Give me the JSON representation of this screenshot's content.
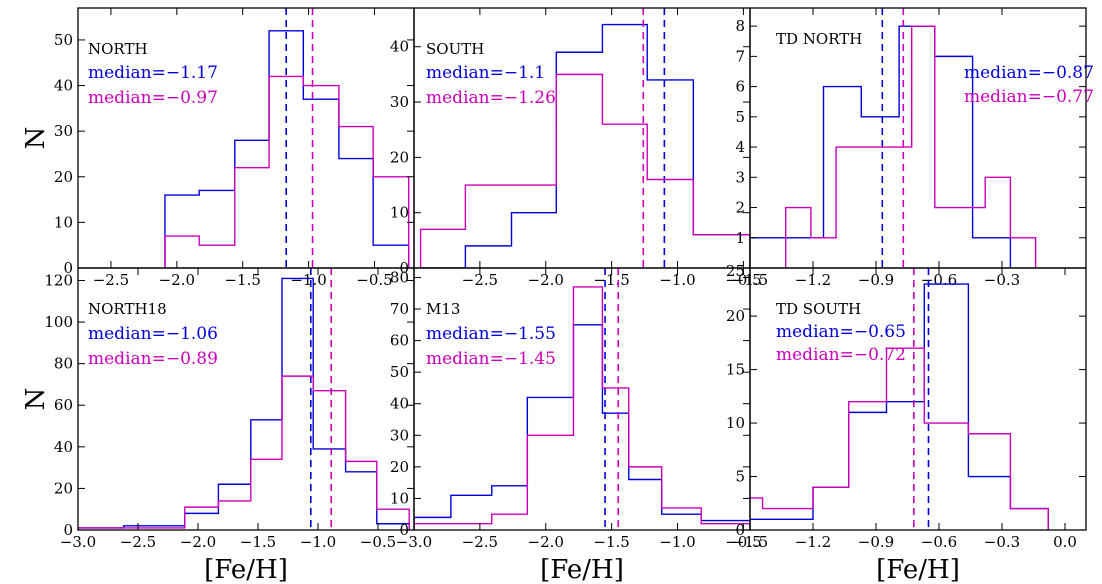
{
  "colors": {
    "blue": "#0000dd",
    "magenta": "#cc00bb",
    "axis": "#000000"
  },
  "chart_data": [
    {
      "type": "histogram",
      "panel": "top-left",
      "annotation": {
        "title": "NORTH",
        "median_blue": "median=−1.17",
        "median_magenta": "median=−0.97"
      },
      "xlim": [
        -2.75,
        -0.2
      ],
      "ylim": [
        0,
        57
      ],
      "xticks": [
        -2.5,
        -2.0,
        -1.5,
        -1.0,
        -0.5
      ],
      "xtick_labels": [
        "−2.5",
        "−2.0",
        "−1.5",
        "−1.0",
        "−0.5"
      ],
      "yticks": [
        0,
        10,
        20,
        30,
        40,
        50
      ],
      "ytick_labels": [
        "0",
        "10",
        "20",
        "30",
        "40",
        "50"
      ],
      "ylabel": "N",
      "xlabel": "",
      "series": [
        {
          "color": "blue",
          "median": -1.17,
          "edges": [
            -2.09,
            -1.83,
            -1.56,
            -1.3,
            -1.04,
            -0.77,
            -0.51,
            -0.24
          ],
          "counts": [
            16,
            17,
            28,
            52,
            37,
            24,
            5
          ]
        },
        {
          "color": "magenta",
          "median": -0.97,
          "edges": [
            -2.09,
            -1.83,
            -1.56,
            -1.3,
            -1.04,
            -0.77,
            -0.51,
            -0.24
          ],
          "counts": [
            7,
            5,
            22,
            42,
            40,
            31,
            20
          ]
        }
      ]
    },
    {
      "type": "histogram",
      "panel": "top-middle",
      "annotation": {
        "title": "SOUTH",
        "median_blue": "median=−1.1",
        "median_magenta": "median=−1.26"
      },
      "xlim": [
        -3.0,
        -0.45
      ],
      "ylim": [
        0,
        47
      ],
      "xticks": [
        -2.5,
        -2.0,
        -1.5,
        -1.0,
        -0.5
      ],
      "xtick_labels": [
        "−2.5",
        "−2.0",
        "−1.5",
        "−1.0",
        "−0.5"
      ],
      "yticks": [
        0,
        10,
        20,
        30,
        40
      ],
      "ytick_labels": [
        "0",
        "10",
        "20",
        "30",
        "40"
      ],
      "ylabel": "",
      "xlabel": "",
      "series": [
        {
          "color": "blue",
          "median": -1.1,
          "edges": [
            -2.95,
            -2.61,
            -2.26,
            -1.92,
            -1.57,
            -1.23,
            -0.88,
            -0.45
          ],
          "counts": [
            0,
            4,
            10,
            39,
            44,
            34,
            6
          ]
        },
        {
          "color": "magenta",
          "median": -1.26,
          "edges": [
            -2.95,
            -2.61,
            -2.26,
            -1.92,
            -1.57,
            -1.23,
            -0.88,
            -0.45
          ],
          "counts": [
            7,
            15,
            15,
            35,
            26,
            16,
            6
          ]
        }
      ]
    },
    {
      "type": "histogram",
      "panel": "top-right",
      "annotation": {
        "title": "TD NORTH",
        "median_blue": "median=−0.87",
        "median_magenta": "median=−0.77"
      },
      "xlim": [
        -1.5,
        0.1
      ],
      "ylim": [
        0,
        8.6
      ],
      "xticks": [
        -1.5,
        -1.2,
        -0.9,
        -0.6,
        -0.3
      ],
      "xtick_labels": [
        "−1.5",
        "−1.2",
        "−0.9",
        "−0.6",
        "−0.3"
      ],
      "yticks": [
        1,
        2,
        3,
        4,
        5,
        6,
        7,
        8
      ],
      "ytick_labels": [
        "1",
        "2",
        "3",
        "4",
        "5",
        "6",
        "7",
        "8"
      ],
      "ylabel": "",
      "xlabel": "",
      "series": [
        {
          "color": "blue",
          "median": -0.87,
          "edges": [
            -1.51,
            -1.33,
            -1.15,
            -0.97,
            -0.79,
            -0.62,
            -0.44,
            -0.26
          ],
          "counts": [
            1,
            1,
            6,
            5,
            8,
            7,
            1
          ]
        },
        {
          "color": "magenta",
          "median": -0.77,
          "edges": [
            -1.33,
            -1.21,
            -1.09,
            -0.97,
            -0.85,
            -0.73,
            -0.62,
            -0.5,
            -0.38,
            -0.26,
            -0.14
          ],
          "counts": [
            2,
            1,
            4,
            4,
            4,
            8,
            2,
            2,
            3,
            1
          ]
        }
      ]
    },
    {
      "type": "histogram",
      "panel": "bottom-left",
      "annotation": {
        "title": "NORTH18",
        "median_blue": "median=−1.06",
        "median_magenta": "median=−0.89"
      },
      "xlim": [
        -3.0,
        -0.2
      ],
      "ylim": [
        0,
        126
      ],
      "xticks": [
        -3.0,
        -2.5,
        -2.0,
        -1.5,
        -1.0,
        -0.5
      ],
      "xtick_labels": [
        "−3.0",
        "−2.5",
        "−2.0",
        "−1.5",
        "−1.0",
        "−0.5"
      ],
      "yticks": [
        0,
        20,
        40,
        60,
        80,
        100,
        120
      ],
      "ytick_labels": [
        "0",
        "20",
        "40",
        "60",
        "80",
        "100",
        "120"
      ],
      "ylabel": "N",
      "xlabel": "[Fe/H]",
      "series": [
        {
          "color": "blue",
          "median": -1.06,
          "edges": [
            -3.0,
            -2.62,
            -2.11,
            -1.83,
            -1.56,
            -1.3,
            -1.04,
            -0.77,
            -0.51,
            -0.24
          ],
          "counts": [
            1,
            2,
            8,
            22,
            53,
            121,
            39,
            28,
            3
          ]
        },
        {
          "color": "magenta",
          "median": -0.89,
          "edges": [
            -3.0,
            -2.62,
            -2.11,
            -1.83,
            -1.56,
            -1.3,
            -1.04,
            -0.77,
            -0.51,
            -0.24
          ],
          "counts": [
            1,
            1,
            11,
            14,
            34,
            74,
            67,
            33,
            10
          ]
        }
      ]
    },
    {
      "type": "histogram",
      "panel": "bottom-middle",
      "annotation": {
        "title": "M13",
        "median_blue": "median=−1.55",
        "median_magenta": "median=−1.45"
      },
      "xlim": [
        -3.0,
        -0.45
      ],
      "ylim": [
        0,
        83
      ],
      "xticks": [
        -3.0,
        -2.5,
        -2.0,
        -1.5,
        -1.0,
        -0.5
      ],
      "xtick_labels": [
        "−3.0",
        "−2.5",
        "−2.0",
        "−1.5",
        "−1.0",
        "−0.5"
      ],
      "yticks": [
        0,
        10,
        20,
        30,
        40,
        50,
        60,
        70,
        80
      ],
      "ytick_labels": [
        "0",
        "10",
        "20",
        "30",
        "40",
        "50",
        "60",
        "70",
        "80"
      ],
      "ylabel": "",
      "xlabel": "[Fe/H]",
      "series": [
        {
          "color": "blue",
          "median": -1.55,
          "edges": [
            -3.0,
            -2.72,
            -2.41,
            -2.14,
            -1.79,
            -1.57,
            -1.37,
            -1.12,
            -0.82,
            -0.45
          ],
          "counts": [
            4,
            11,
            14,
            42,
            65,
            37,
            16,
            5,
            3
          ]
        },
        {
          "color": "magenta",
          "median": -1.45,
          "edges": [
            -3.0,
            -2.72,
            -2.41,
            -2.14,
            -1.79,
            -1.57,
            -1.37,
            -1.12,
            -0.82,
            -0.45
          ],
          "counts": [
            2,
            2,
            5,
            30,
            77,
            45,
            20,
            7,
            2
          ]
        }
      ]
    },
    {
      "type": "histogram",
      "panel": "bottom-right",
      "annotation": {
        "title": "TD SOUTH",
        "median_blue": "median=−0.65",
        "median_magenta": "median=−0.72"
      },
      "xlim": [
        -1.5,
        0.1
      ],
      "ylim": [
        0,
        24.5
      ],
      "xticks": [
        -1.5,
        -1.2,
        -0.9,
        -0.6,
        -0.3,
        0.0
      ],
      "xtick_labels": [
        "−1.5",
        "−1.2",
        "−0.9",
        "−0.6",
        "−0.3",
        "0.0"
      ],
      "yticks": [
        0,
        5,
        10,
        15,
        20
      ],
      "ytick_labels": [
        "0",
        "5",
        "10",
        "15",
        "20"
      ],
      "extra_tick_label": "25",
      "ylabel": "",
      "xlabel": "[Fe/H]",
      "series": [
        {
          "color": "blue",
          "median": -0.65,
          "edges": [
            -1.51,
            -1.2,
            -1.03,
            -0.85,
            -0.67,
            -0.46,
            -0.26,
            -0.08
          ],
          "counts": [
            1,
            4,
            11,
            12,
            23,
            5,
            2
          ]
        },
        {
          "color": "magenta",
          "median": -0.72,
          "edges": [
            -1.51,
            -1.44,
            -1.2,
            -1.03,
            -0.85,
            -0.67,
            -0.46,
            -0.26,
            -0.08
          ],
          "counts": [
            3,
            2,
            4,
            12,
            17,
            10,
            9,
            2
          ]
        }
      ]
    }
  ]
}
